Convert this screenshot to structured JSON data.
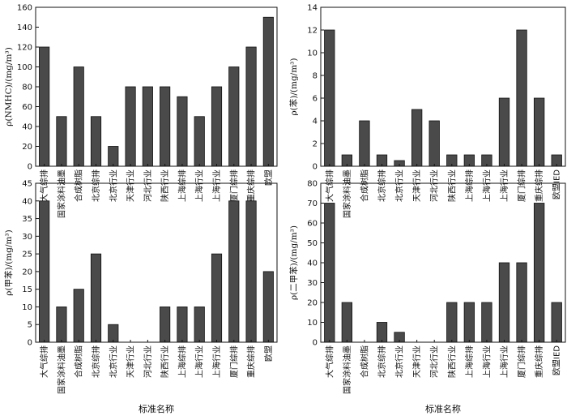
{
  "chart_data": [
    {
      "type": "bar",
      "title": "",
      "xlabel": "",
      "ylabel": "ρ(NMHC)/(mg/m³)",
      "ylim": [
        0,
        160
      ],
      "yticks": [
        0,
        20,
        40,
        60,
        80,
        100,
        120,
        140,
        160
      ],
      "grid": false,
      "categories": [
        "大气综排",
        "国家涂料油墨",
        "合成树脂",
        "北京综排",
        "北京行业",
        "天津行业",
        "河北行业",
        "陕西行业",
        "上海综排",
        "上海行业",
        "上海行业",
        "厦门综排",
        "重庆综排",
        "欧盟"
      ],
      "values": [
        120,
        50,
        100,
        50,
        20,
        80,
        80,
        80,
        70,
        50,
        80,
        100,
        120,
        150
      ],
      "bar_color": "#4a4a4a"
    },
    {
      "type": "bar",
      "title": "",
      "xlabel": "",
      "ylabel": "ρ(苯)/(mg/m³)",
      "ylim": [
        0,
        14
      ],
      "yticks": [
        0,
        2,
        4,
        6,
        8,
        10,
        12,
        14
      ],
      "grid": false,
      "categories": [
        "大气综排",
        "国家涂料油墨",
        "合成树脂",
        "北京综排",
        "北京行业",
        "天津行业",
        "河北行业",
        "陕西行业",
        "上海综排",
        "上海行业",
        "上海行业",
        "厦门综排",
        "重庆综排",
        "欧盟IED"
      ],
      "values": [
        12,
        1,
        4,
        1,
        0.5,
        5,
        4,
        1,
        1,
        1,
        6,
        12,
        6,
        1
      ],
      "bar_color": "#4a4a4a"
    },
    {
      "type": "bar",
      "title": "",
      "xlabel": "标准名称",
      "ylabel": "ρ(甲苯)/(mg/m³)",
      "ylim": [
        0,
        45
      ],
      "yticks": [
        0,
        5,
        10,
        15,
        20,
        25,
        30,
        35,
        40,
        45
      ],
      "grid": false,
      "categories": [
        "大气综排",
        "国家涂料油墨",
        "合成树脂",
        "北京综排",
        "北京行业",
        "天津行业",
        "河北行业",
        "陕西行业",
        "上海综排",
        "上海行业",
        "上海行业",
        "厦门综排",
        "重庆综排",
        "欧盟"
      ],
      "values": [
        40,
        10,
        15,
        25,
        5,
        0,
        0,
        10,
        10,
        10,
        25,
        40,
        40,
        20
      ],
      "bar_color": "#4a4a4a"
    },
    {
      "type": "bar",
      "title": "",
      "xlabel": "标准名称",
      "ylabel": "ρ(二甲苯)/(mg/m³)",
      "ylim": [
        0,
        80
      ],
      "yticks": [
        0,
        10,
        20,
        30,
        40,
        50,
        60,
        70,
        80
      ],
      "grid": false,
      "categories": [
        "大气综排",
        "国家涂料油墨",
        "合成树脂",
        "北京综排",
        "北京行业",
        "天津行业",
        "河北行业",
        "陕西行业",
        "上海综排",
        "上海行业",
        "上海行业",
        "厦门综排",
        "重庆综排",
        "欧盟IED"
      ],
      "values": [
        70,
        20,
        0,
        10,
        5,
        0,
        0,
        20,
        20,
        20,
        40,
        40,
        70,
        20
      ],
      "bar_color": "#4a4a4a"
    }
  ]
}
